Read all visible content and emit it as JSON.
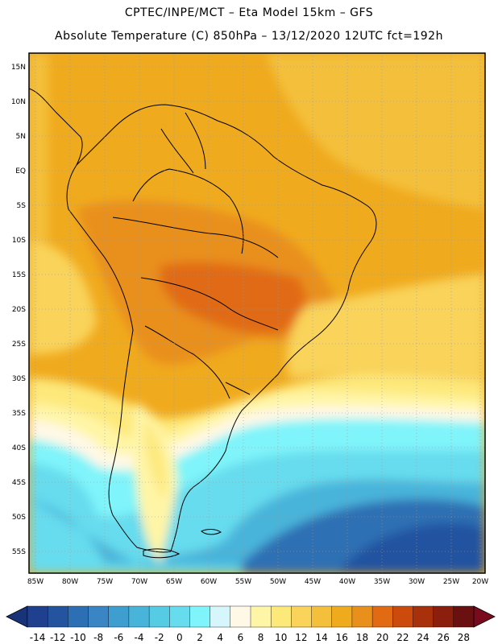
{
  "header": {
    "line1": "CPTEC/INPE/MCT –  Eta Model 15km – GFS",
    "line2": "Absolute Temperature (C) 850hPa – 13/12/2020 12UTC fct=192h"
  },
  "map": {
    "lat_ticks": [
      "15N",
      "10N",
      "5N",
      "EQ",
      "5S",
      "10S",
      "15S",
      "20S",
      "25S",
      "30S",
      "35S",
      "40S",
      "45S",
      "50S",
      "55S"
    ],
    "lon_ticks": [
      "85W",
      "80W",
      "75W",
      "70W",
      "65W",
      "60W",
      "55W",
      "50W",
      "45W",
      "40W",
      "35W",
      "30W",
      "25W",
      "20W"
    ]
  },
  "colorbar": {
    "labels": [
      "-14",
      "-12",
      "-10",
      "-8",
      "-6",
      "-4",
      "-2",
      "0",
      "2",
      "4",
      "6",
      "8",
      "10",
      "12",
      "14",
      "16",
      "18",
      "20",
      "22",
      "24",
      "26",
      "28"
    ],
    "colors": [
      "#1f3f8f",
      "#2453a0",
      "#2d6fb4",
      "#3a86c4",
      "#3e9ecf",
      "#48b4da",
      "#56cbe4",
      "#66dcee",
      "#7ff4fa",
      "#d6f6fb",
      "#fff8e6",
      "#fff5a6",
      "#fde87a",
      "#f9d35a",
      "#f4c03b",
      "#f0aa1e",
      "#e98f1c",
      "#e16a12",
      "#cb4a0c",
      "#a8300a",
      "#8b1e0c",
      "#6a1010"
    ],
    "under_color": "#183377",
    "over_color": "#7a0a1e"
  }
}
